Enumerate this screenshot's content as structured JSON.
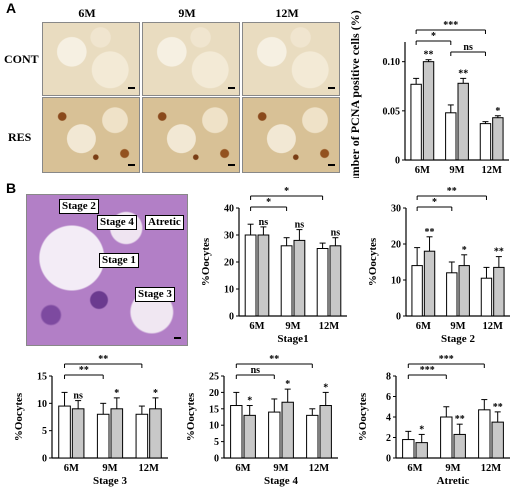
{
  "panels": {
    "a": {
      "letter": "A",
      "columns": [
        "6M",
        "9M",
        "12M"
      ],
      "rows": [
        "CONT",
        "RES"
      ]
    },
    "b": {
      "letter": "B",
      "image_labels": [
        "Stage 2",
        "Stage 4",
        "Atretic",
        "Stage 1",
        "Stage 3"
      ]
    }
  },
  "chart_data": [
    {
      "id": "pcna",
      "type": "bar",
      "categories": [
        "6M",
        "9M",
        "12M"
      ],
      "ylabel": "Number of PCNA positive cells (%)",
      "ylim": [
        0,
        0.12
      ],
      "yticks": [
        "0",
        "0.05",
        "0.10"
      ],
      "ytick_values": [
        0,
        0.05,
        0.1
      ],
      "series": [
        {
          "values": [
            0.077,
            0.048,
            0.037
          ],
          "errors": [
            0.006,
            0.008,
            0.002
          ],
          "color": "#ffffff",
          "stars": [
            "",
            "",
            ""
          ]
        },
        {
          "values": [
            0.1,
            0.078,
            0.043
          ],
          "errors": [
            0.002,
            0.005,
            0.002
          ],
          "color": "#c8c8c8",
          "stars": [
            "**",
            "**",
            "*"
          ]
        }
      ],
      "brackets": [
        {
          "from": 0,
          "to": 2,
          "text": "***"
        },
        {
          "from": 0,
          "to": 1,
          "text": "*"
        },
        {
          "from": 1,
          "to": 2,
          "text": "ns"
        }
      ]
    },
    {
      "id": "stage1",
      "type": "bar",
      "categories": [
        "6M",
        "9M",
        "12M"
      ],
      "xlabel": "Stage1",
      "ylabel": "%Oocytes",
      "ylim": [
        0,
        40
      ],
      "yticks": [
        "0",
        "10",
        "20",
        "30",
        "40"
      ],
      "ytick_values": [
        0,
        10,
        20,
        30,
        40
      ],
      "series": [
        {
          "values": [
            30,
            26,
            25
          ],
          "errors": [
            4,
            3,
            2
          ],
          "color": "#ffffff",
          "stars": [
            "",
            "",
            ""
          ]
        },
        {
          "values": [
            30,
            28,
            26
          ],
          "errors": [
            3,
            4,
            3
          ],
          "color": "#c8c8c8",
          "stars": [
            "ns",
            "ns",
            "ns"
          ]
        }
      ],
      "brackets": [
        {
          "from": 0,
          "to": 2,
          "text": "*"
        },
        {
          "from": 0,
          "to": 1,
          "text": "*"
        }
      ]
    },
    {
      "id": "stage2",
      "type": "bar",
      "categories": [
        "6M",
        "9M",
        "12M"
      ],
      "xlabel": "Stage 2",
      "ylabel": "%Oocytes",
      "ylim": [
        0,
        30
      ],
      "yticks": [
        "0",
        "10",
        "20",
        "30"
      ],
      "ytick_values": [
        0,
        10,
        20,
        30
      ],
      "series": [
        {
          "values": [
            14,
            12,
            10.5
          ],
          "errors": [
            5,
            3,
            3
          ],
          "color": "#ffffff",
          "stars": [
            "",
            "",
            ""
          ]
        },
        {
          "values": [
            18,
            14,
            13.5
          ],
          "errors": [
            4,
            3,
            3
          ],
          "color": "#c8c8c8",
          "stars": [
            "**",
            "*",
            "**"
          ]
        }
      ],
      "brackets": [
        {
          "from": 0,
          "to": 2,
          "text": "**"
        },
        {
          "from": 0,
          "to": 1,
          "text": "*"
        }
      ]
    },
    {
      "id": "stage3",
      "type": "bar",
      "categories": [
        "6M",
        "9M",
        "12M"
      ],
      "xlabel": "Stage 3",
      "ylabel": "%Oocytes",
      "ylim": [
        0,
        15
      ],
      "yticks": [
        "0",
        "5",
        "10",
        "15"
      ],
      "ytick_values": [
        0,
        5,
        10,
        15
      ],
      "series": [
        {
          "values": [
            9.5,
            8,
            8
          ],
          "errors": [
            2.5,
            2,
            1.5
          ],
          "color": "#ffffff",
          "stars": [
            "",
            "",
            ""
          ]
        },
        {
          "values": [
            9,
            9,
            9
          ],
          "errors": [
            1.5,
            2,
            2
          ],
          "color": "#c8c8c8",
          "stars": [
            "ns",
            "*",
            "*"
          ]
        }
      ],
      "brackets": [
        {
          "from": 0,
          "to": 2,
          "text": "**"
        },
        {
          "from": 0,
          "to": 1,
          "text": "**"
        }
      ]
    },
    {
      "id": "stage4",
      "type": "bar",
      "categories": [
        "6M",
        "9M",
        "12M"
      ],
      "xlabel": "Stage 4",
      "ylabel": "%Oocytes",
      "ylim": [
        0,
        25
      ],
      "yticks": [
        "0",
        "5",
        "10",
        "15",
        "20",
        "25"
      ],
      "ytick_values": [
        0,
        5,
        10,
        15,
        20,
        25
      ],
      "series": [
        {
          "values": [
            16,
            14,
            13
          ],
          "errors": [
            4,
            4,
            2
          ],
          "color": "#ffffff",
          "stars": [
            "",
            "",
            ""
          ]
        },
        {
          "values": [
            13,
            17,
            16
          ],
          "errors": [
            3,
            4,
            4
          ],
          "color": "#c8c8c8",
          "stars": [
            "*",
            "*",
            "*"
          ]
        }
      ],
      "brackets": [
        {
          "from": 0,
          "to": 2,
          "text": "**"
        },
        {
          "from": 0,
          "to": 1,
          "text": "ns"
        }
      ]
    },
    {
      "id": "atretic",
      "type": "bar",
      "categories": [
        "6M",
        "9M",
        "12M"
      ],
      "xlabel": "Atretic",
      "ylabel": "%Oocytes",
      "ylim": [
        0,
        8
      ],
      "yticks": [
        "0",
        "2",
        "4",
        "6",
        "8"
      ],
      "ytick_values": [
        0,
        2,
        4,
        6,
        8
      ],
      "series": [
        {
          "values": [
            1.8,
            4,
            4.7
          ],
          "errors": [
            0.8,
            1,
            1
          ],
          "color": "#ffffff",
          "stars": [
            "",
            "",
            ""
          ]
        },
        {
          "values": [
            1.5,
            2.3,
            3.5
          ],
          "errors": [
            0.8,
            1,
            1
          ],
          "color": "#c8c8c8",
          "stars": [
            "*",
            "**",
            "**"
          ]
        }
      ],
      "brackets": [
        {
          "from": 0,
          "to": 2,
          "text": "***"
        },
        {
          "from": 0,
          "to": 1,
          "text": "***"
        }
      ]
    }
  ]
}
